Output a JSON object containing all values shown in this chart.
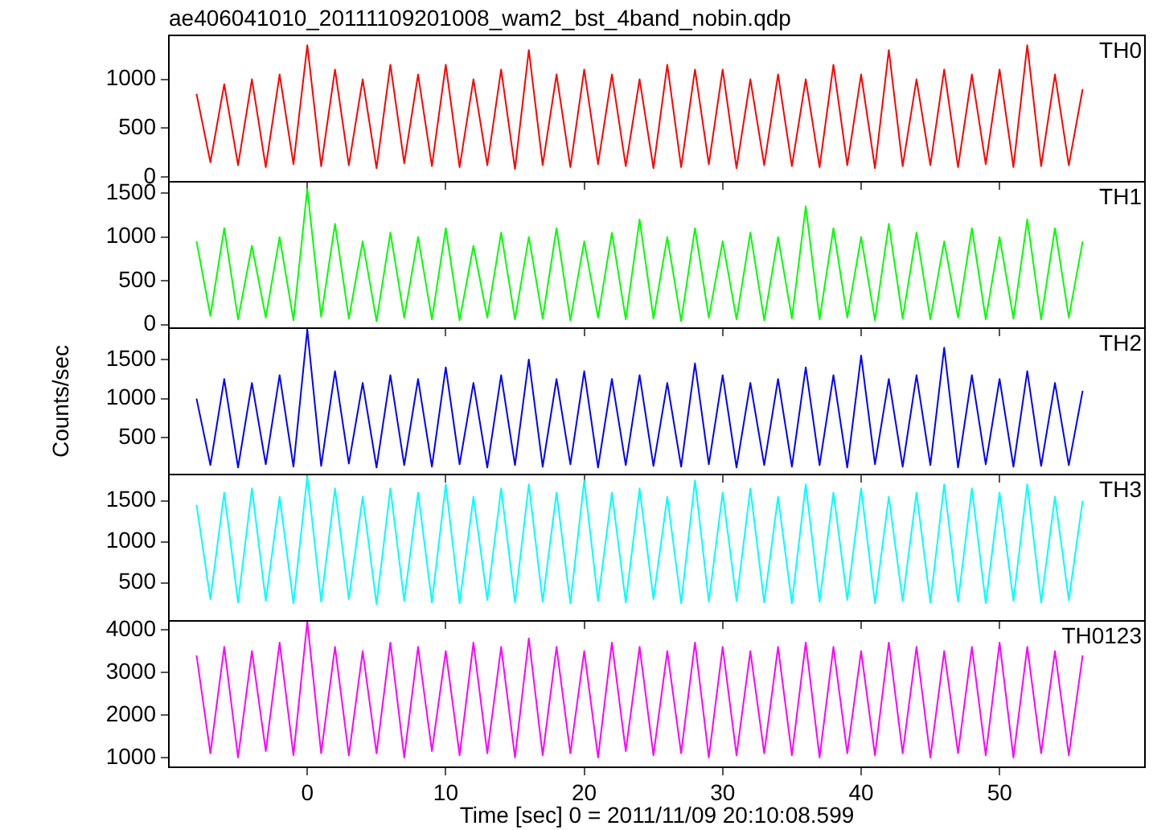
{
  "chart_data": [
    {
      "type": "line",
      "title": "ae406041010_20111109201008_wam2_bst_4band_nobin.qdp",
      "tick_labels": "y",
      "marker": "none",
      "line_style": "solid",
      "x": [
        -8,
        -7,
        -6,
        -5,
        -4,
        -3,
        -2,
        -1,
        0,
        1,
        2,
        3,
        4,
        5,
        6,
        7,
        8,
        9,
        10,
        11,
        12,
        13,
        14,
        15,
        16,
        17,
        18,
        19,
        20,
        21,
        22,
        23,
        24,
        25,
        26,
        27,
        28,
        29,
        30,
        31,
        32,
        33,
        34,
        35,
        36,
        37,
        38,
        39,
        40,
        41,
        42,
        43,
        44,
        45,
        46,
        47,
        48,
        49,
        50,
        51,
        52,
        53,
        54,
        55,
        56
      ],
      "xlim": [
        -10,
        60.5
      ],
      "xticks": [
        0,
        10,
        20,
        30,
        40,
        50
      ],
      "ylim": [
        -50,
        1450
      ],
      "yticks": [
        0,
        500,
        1000
      ],
      "series": [
        {
          "name": "TH0",
          "color": "#ff0000",
          "values": [
            850,
            150,
            950,
            120,
            1000,
            100,
            1050,
            130,
            1350,
            110,
            1100,
            120,
            1000,
            90,
            1150,
            140,
            1050,
            110,
            1150,
            100,
            1000,
            120,
            1100,
            80,
            1300,
            120,
            1050,
            100,
            1100,
            130,
            1050,
            110,
            1000,
            90,
            1150,
            100,
            1100,
            130,
            1100,
            90,
            1000,
            120,
            1050,
            110,
            1000,
            100,
            1150,
            120,
            1050,
            90,
            1300,
            110,
            1000,
            120,
            1100,
            100,
            1050,
            130,
            1100,
            100,
            1350,
            110,
            1050,
            120,
            900
          ]
        }
      ]
    },
    {
      "type": "line",
      "tick_labels": "y",
      "marker": "none",
      "line_style": "solid",
      "x": [
        -8,
        -7,
        -6,
        -5,
        -4,
        -3,
        -2,
        -1,
        0,
        1,
        2,
        3,
        4,
        5,
        6,
        7,
        8,
        9,
        10,
        11,
        12,
        13,
        14,
        15,
        16,
        17,
        18,
        19,
        20,
        21,
        22,
        23,
        24,
        25,
        26,
        27,
        28,
        29,
        30,
        31,
        32,
        33,
        34,
        35,
        36,
        37,
        38,
        39,
        40,
        41,
        42,
        43,
        44,
        45,
        46,
        47,
        48,
        49,
        50,
        51,
        52,
        53,
        54,
        55,
        56
      ],
      "xlim": [
        -10,
        60.5
      ],
      "xticks": [
        0,
        10,
        20,
        30,
        40,
        50
      ],
      "ylim": [
        -40,
        1630
      ],
      "yticks": [
        0,
        500,
        1000,
        1500
      ],
      "series": [
        {
          "name": "TH1",
          "color": "#00ff00",
          "values": [
            950,
            100,
            1100,
            60,
            900,
            80,
            1000,
            50,
            1550,
            90,
            1150,
            70,
            950,
            40,
            1050,
            80,
            1000,
            60,
            1100,
            50,
            900,
            80,
            1050,
            60,
            1000,
            70,
            1100,
            50,
            950,
            80,
            1050,
            60,
            1200,
            70,
            1000,
            40,
            1100,
            80,
            950,
            60,
            1050,
            50,
            1000,
            70,
            1350,
            60,
            1100,
            80,
            1000,
            50,
            1150,
            70,
            1050,
            60,
            950,
            80,
            1100,
            60,
            1000,
            70,
            1200,
            60,
            1100,
            80,
            950
          ]
        }
      ]
    },
    {
      "type": "line",
      "tick_labels": "y",
      "marker": "none",
      "line_style": "solid",
      "ylabel": "Counts/sec",
      "x": [
        -8,
        -7,
        -6,
        -5,
        -4,
        -3,
        -2,
        -1,
        0,
        1,
        2,
        3,
        4,
        5,
        6,
        7,
        8,
        9,
        10,
        11,
        12,
        13,
        14,
        15,
        16,
        17,
        18,
        19,
        20,
        21,
        22,
        23,
        24,
        25,
        26,
        27,
        28,
        29,
        30,
        31,
        32,
        33,
        34,
        35,
        36,
        37,
        38,
        39,
        40,
        41,
        42,
        43,
        44,
        45,
        46,
        47,
        48,
        49,
        50,
        51,
        52,
        53,
        54,
        55,
        56
      ],
      "xlim": [
        -10,
        60.5
      ],
      "xticks": [
        0,
        10,
        20,
        30,
        40,
        50
      ],
      "ylim": [
        30,
        1900
      ],
      "yticks": [
        500,
        1000,
        1500
      ],
      "series": [
        {
          "name": "TH2",
          "color": "#0000ff",
          "values": [
            1000,
            150,
            1250,
            120,
            1200,
            160,
            1300,
            130,
            1880,
            140,
            1350,
            170,
            1200,
            120,
            1300,
            150,
            1250,
            130,
            1400,
            160,
            1200,
            120,
            1300,
            150,
            1500,
            130,
            1250,
            160,
            1350,
            120,
            1250,
            150,
            1300,
            140,
            1200,
            130,
            1450,
            160,
            1300,
            120,
            1200,
            150,
            1250,
            130,
            1400,
            150,
            1300,
            120,
            1550,
            160,
            1250,
            130,
            1300,
            150,
            1650,
            120,
            1300,
            160,
            1250,
            130,
            1350,
            140,
            1200,
            150,
            1100
          ]
        }
      ]
    },
    {
      "type": "line",
      "tick_labels": "y",
      "marker": "none",
      "line_style": "solid",
      "x": [
        -8,
        -7,
        -6,
        -5,
        -4,
        -3,
        -2,
        -1,
        0,
        1,
        2,
        3,
        4,
        5,
        6,
        7,
        8,
        9,
        10,
        11,
        12,
        13,
        14,
        15,
        16,
        17,
        18,
        19,
        20,
        21,
        22,
        23,
        24,
        25,
        26,
        27,
        28,
        29,
        30,
        31,
        32,
        33,
        34,
        35,
        36,
        37,
        38,
        39,
        40,
        41,
        42,
        43,
        44,
        45,
        46,
        47,
        48,
        49,
        50,
        51,
        52,
        53,
        54,
        55,
        56
      ],
      "xlim": [
        -10,
        60.5
      ],
      "xticks": [
        0,
        10,
        20,
        30,
        40,
        50
      ],
      "ylim": [
        35,
        1820
      ],
      "yticks": [
        500,
        1000,
        1500
      ],
      "series": [
        {
          "name": "TH3",
          "color": "#00ffff",
          "values": [
            1450,
            300,
            1600,
            260,
            1650,
            280,
            1550,
            250,
            1800,
            270,
            1650,
            300,
            1550,
            240,
            1650,
            280,
            1600,
            260,
            1700,
            250,
            1550,
            290,
            1650,
            260,
            1700,
            270,
            1600,
            250,
            1750,
            280,
            1600,
            260,
            1650,
            300,
            1550,
            250,
            1750,
            270,
            1600,
            280,
            1650,
            260,
            1550,
            250,
            1700,
            270,
            1600,
            290,
            1650,
            250,
            1550,
            280,
            1600,
            260,
            1700,
            270,
            1650,
            250,
            1600,
            280,
            1700,
            260,
            1550,
            290,
            1500
          ]
        }
      ]
    },
    {
      "type": "line",
      "marker": "none",
      "line_style": "solid",
      "xlabel": "Time [sec] 0 = 2011/11/09 20:10:08.599",
      "x": [
        -8,
        -7,
        -6,
        -5,
        -4,
        -3,
        -2,
        -1,
        0,
        1,
        2,
        3,
        4,
        5,
        6,
        7,
        8,
        9,
        10,
        11,
        12,
        13,
        14,
        15,
        16,
        17,
        18,
        19,
        20,
        21,
        22,
        23,
        24,
        25,
        26,
        27,
        28,
        29,
        30,
        31,
        32,
        33,
        34,
        35,
        36,
        37,
        38,
        39,
        40,
        41,
        42,
        43,
        44,
        45,
        46,
        47,
        48,
        49,
        50,
        51,
        52,
        53,
        54,
        55,
        56
      ],
      "xlim": [
        -10,
        60.5
      ],
      "xticks": [
        0,
        10,
        20,
        30,
        40,
        50
      ],
      "ylim": [
        770,
        4210
      ],
      "yticks": [
        1000,
        2000,
        3000,
        4000
      ],
      "series": [
        {
          "name": "TH0123",
          "color": "#ff00ff",
          "values": [
            3400,
            1100,
            3600,
            1000,
            3500,
            1150,
            3700,
            1050,
            4200,
            1100,
            3600,
            1050,
            3500,
            1100,
            3700,
            1000,
            3600,
            1150,
            3500,
            1050,
            3700,
            1100,
            3600,
            1000,
            3800,
            1050,
            3600,
            1100,
            3500,
            1000,
            3700,
            1150,
            3600,
            1050,
            3500,
            1100,
            3700,
            1000,
            3600,
            1050,
            3500,
            1100,
            3600,
            1050,
            3700,
            1000,
            3600,
            1100,
            3500,
            1050,
            3700,
            1100,
            3600,
            1000,
            3500,
            1100,
            3600,
            1050,
            3700,
            1000,
            3600,
            1100,
            3500,
            1050,
            3400
          ]
        }
      ]
    }
  ]
}
